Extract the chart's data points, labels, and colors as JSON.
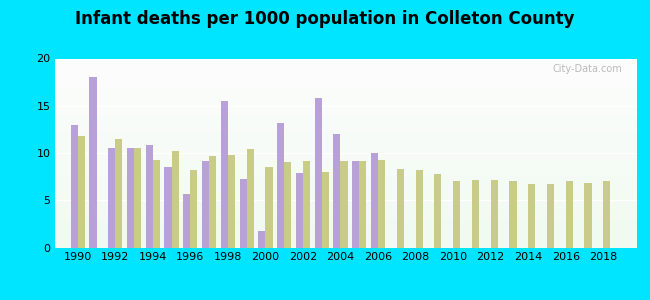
{
  "title": "Infant deaths per 1000 population in Colleton County",
  "years": [
    1990,
    1991,
    1992,
    1993,
    1994,
    1995,
    1996,
    1997,
    1998,
    1999,
    2000,
    2001,
    2002,
    2003,
    2004,
    2005,
    2006,
    2007,
    2008,
    2009,
    2010,
    2011,
    2012,
    2013,
    2014,
    2015,
    2016,
    2017,
    2018
  ],
  "colleton": [
    13.0,
    18.0,
    10.5,
    10.5,
    10.8,
    8.5,
    5.7,
    9.2,
    15.5,
    7.2,
    1.7,
    13.2,
    7.9,
    15.8,
    12.0,
    9.2,
    10.0,
    null,
    null,
    null,
    null,
    null,
    null,
    null,
    null,
    null,
    null,
    null,
    null
  ],
  "sc": [
    11.8,
    null,
    11.5,
    10.5,
    9.3,
    10.2,
    8.2,
    9.7,
    9.8,
    10.4,
    8.5,
    9.0,
    9.2,
    8.0,
    9.2,
    9.2,
    9.3,
    8.3,
    8.2,
    7.8,
    7.0,
    7.1,
    7.1,
    7.0,
    6.7,
    6.7,
    7.0,
    6.8,
    7.0
  ],
  "colleton_color": "#b8a0d8",
  "sc_color": "#c8cc88",
  "outer_bg": "#00e5ff",
  "ylim": [
    0,
    20
  ],
  "yticks": [
    0,
    5,
    10,
    15,
    20
  ],
  "bar_width": 0.38,
  "title_fontsize": 12,
  "legend_fontsize": 9,
  "tick_fontsize": 8,
  "xticks": [
    1990,
    1992,
    1994,
    1996,
    1998,
    2000,
    2002,
    2004,
    2006,
    2008,
    2010,
    2012,
    2014,
    2016,
    2018
  ],
  "xlim": [
    1988.8,
    2019.8
  ]
}
